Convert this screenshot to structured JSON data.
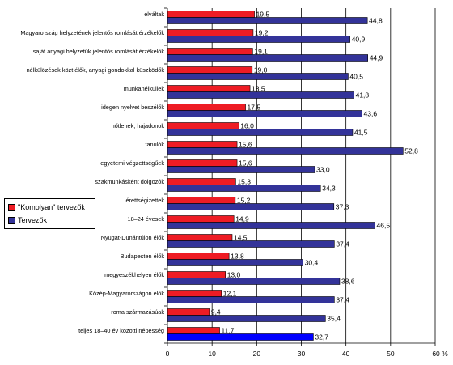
{
  "chart_data": {
    "type": "bar",
    "orientation": "horizontal",
    "categories": [
      "elváltak",
      "Magyarország helyzetének jelentős romlását érzékelők",
      "saját anyagi helyzetük jelentős romlását érzékelők",
      "nélkülözések közt élők, anyagi gondokkal küszködők",
      "munkanélküliek",
      "idegen nyelvet beszélők",
      "nőtlenek, hajadonok",
      "tanulók",
      "egyetemi végzettségűek",
      "szakmunkásként dolgozók",
      "érettségizettek",
      "18–24 évesek",
      "Nyugat-Dunántúlon élők",
      "Budapesten élők",
      "megyeszékhelyen élők",
      "Közép-Magyarországon élők",
      "roma származásúak",
      "teljes 18–40 év közötti népesség"
    ],
    "series": [
      {
        "name": "\"Komolyan\" tervezők",
        "color": "#ee1c24",
        "values": [
          19.5,
          19.2,
          19.1,
          19.0,
          18.5,
          17.5,
          16.0,
          15.6,
          15.6,
          15.3,
          15.2,
          14.9,
          14.5,
          13.8,
          13.0,
          12.1,
          9.4,
          11.7
        ],
        "labels": [
          "19,5",
          "19,2",
          "19,1",
          "19,0",
          "18,5",
          "17,5",
          "16,0",
          "15,6",
          "15,6",
          "15,3",
          "15,2",
          "14,9",
          "14,5",
          "13,8",
          "13,0",
          "12,1",
          "9,4",
          "11,7"
        ]
      },
      {
        "name": "Tervezők",
        "color": "#333399",
        "values": [
          44.8,
          40.9,
          44.9,
          40.5,
          41.8,
          43.6,
          41.5,
          52.8,
          33.0,
          34.3,
          37.3,
          46.5,
          37.4,
          30.4,
          38.6,
          37.4,
          35.4,
          32.7
        ],
        "labels": [
          "44,8",
          "40,9",
          "44,9",
          "40,5",
          "41,8",
          "43,6",
          "41,5",
          "52,8",
          "33,0",
          "34,3",
          "37,3",
          "46,5",
          "37,4",
          "30,4",
          "38,6",
          "37,4",
          "35,4",
          "32,7"
        ]
      }
    ],
    "highlight_color": "#0000ff",
    "xlim": [
      0,
      60
    ],
    "x_ticks": [
      "0",
      "10",
      "20",
      "30",
      "40",
      "50",
      "60 %"
    ],
    "vertical_gridlines": true,
    "legend_position": "left"
  }
}
